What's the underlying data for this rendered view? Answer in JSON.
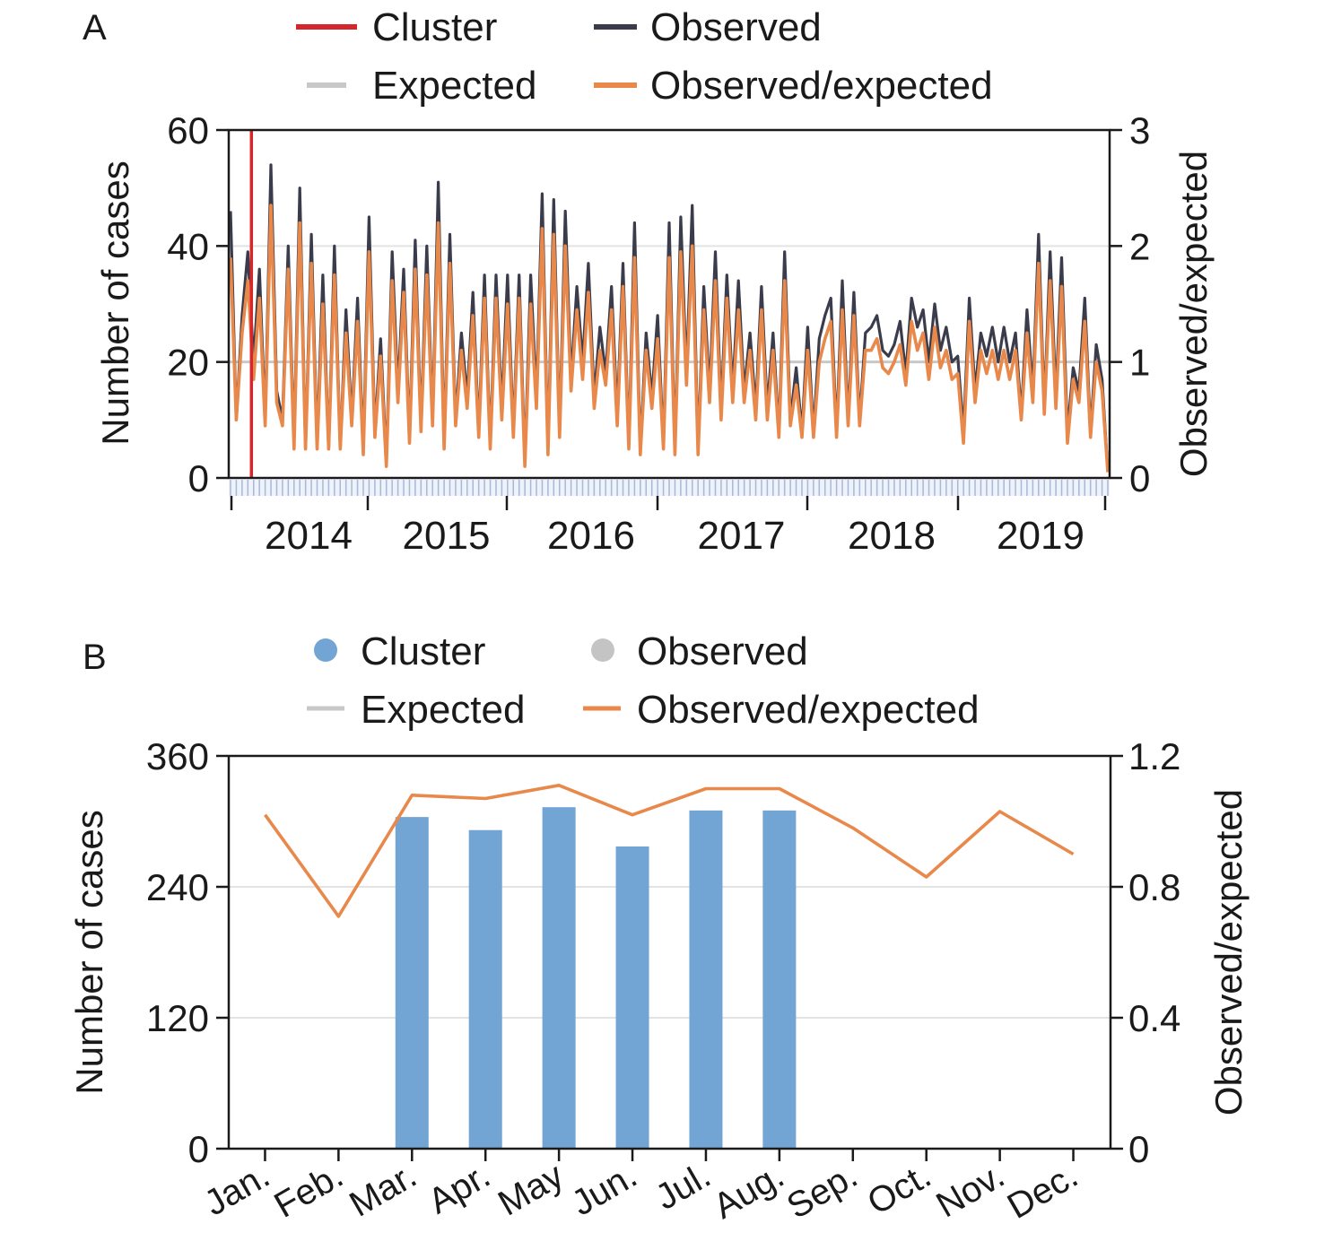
{
  "chart_data": [
    {
      "panel": "A",
      "type": "line",
      "legend": [
        "Cluster",
        "Observed",
        "Expected",
        "Observed/expected"
      ],
      "ylabel_left": "Number of cases",
      "ylabel_right": "Observed/expected",
      "ylim_left": [
        0,
        60
      ],
      "ylim_right": [
        0,
        3
      ],
      "yticks_left": [
        "0",
        "20",
        "40",
        "60"
      ],
      "yticks_right": [
        "0",
        "1",
        "2",
        "3"
      ],
      "x_year_labels": [
        "2014",
        "2015",
        "2016",
        "2017",
        "2018",
        "2019"
      ],
      "x_start": "2013-11",
      "cluster_marker_index": 3,
      "expected_value": 20,
      "series": [
        {
          "name": "Observed",
          "unit": "cases",
          "values": [
            46,
            10,
            28,
            39,
            20,
            36,
            10,
            54,
            15,
            10,
            40,
            6,
            50,
            5,
            42,
            6,
            35,
            5,
            40,
            5,
            29,
            10,
            31,
            5,
            45,
            8,
            24,
            3,
            39,
            15,
            36,
            7,
            41,
            9,
            40,
            10,
            51,
            6,
            42,
            10,
            25,
            14,
            32,
            8,
            35,
            6,
            35,
            12,
            35,
            8,
            35,
            3,
            35,
            14,
            49,
            5,
            48,
            8,
            46,
            17,
            33,
            20,
            37,
            14,
            26,
            18,
            33,
            11,
            37,
            6,
            44,
            5,
            25,
            14,
            28,
            6,
            44,
            5,
            45,
            18,
            47,
            5,
            33,
            15,
            39,
            12,
            35,
            15,
            34,
            15,
            25,
            12,
            33,
            12,
            25,
            8,
            39,
            10,
            19,
            8,
            26,
            8,
            24,
            28,
            31,
            8,
            34,
            10,
            32,
            10,
            25,
            26,
            28,
            22,
            21,
            23,
            27,
            18,
            31,
            26,
            29,
            20,
            30,
            22,
            26,
            20,
            21,
            8,
            31,
            15,
            25,
            21,
            26,
            20,
            26,
            20,
            25,
            11,
            29,
            15,
            42,
            12,
            39,
            14,
            38,
            8,
            19,
            15,
            31,
            8,
            23,
            17,
            1
          ]
        },
        {
          "name": "Observed/expected",
          "unit": "ratio",
          "values": [
            1.9,
            0.5,
            1.25,
            1.7,
            0.85,
            1.55,
            0.45,
            2.35,
            0.65,
            0.45,
            1.8,
            0.25,
            2.2,
            0.25,
            1.85,
            0.25,
            1.5,
            0.25,
            1.75,
            0.25,
            1.25,
            0.45,
            1.35,
            0.2,
            1.95,
            0.35,
            1.05,
            0.1,
            1.7,
            0.65,
            1.6,
            0.3,
            1.8,
            0.4,
            1.75,
            0.45,
            2.2,
            0.25,
            1.85,
            0.45,
            1.1,
            0.6,
            1.4,
            0.35,
            1.55,
            0.25,
            1.55,
            0.5,
            1.5,
            0.35,
            1.55,
            0.1,
            1.5,
            0.6,
            2.15,
            0.2,
            2.1,
            0.35,
            2.0,
            0.75,
            1.45,
            0.85,
            1.6,
            0.6,
            1.1,
            0.8,
            1.45,
            0.45,
            1.65,
            0.25,
            1.9,
            0.2,
            1.1,
            0.6,
            1.2,
            0.25,
            1.9,
            0.2,
            1.95,
            0.8,
            2.0,
            0.2,
            1.45,
            0.65,
            1.7,
            0.5,
            1.55,
            0.65,
            1.45,
            0.65,
            1.1,
            0.5,
            1.45,
            0.5,
            1.1,
            0.35,
            1.7,
            0.45,
            0.8,
            0.35,
            1.1,
            0.35,
            1.0,
            1.2,
            1.35,
            0.35,
            1.45,
            0.45,
            1.4,
            0.45,
            1.1,
            1.1,
            1.2,
            0.95,
            0.9,
            1.0,
            1.15,
            0.8,
            1.35,
            1.1,
            1.25,
            0.85,
            1.3,
            0.95,
            1.1,
            0.85,
            0.9,
            0.3,
            1.35,
            0.65,
            1.1,
            0.9,
            1.1,
            0.85,
            1.1,
            0.85,
            1.1,
            0.5,
            1.25,
            0.65,
            1.85,
            0.55,
            1.7,
            0.6,
            1.65,
            0.3,
            0.85,
            0.65,
            1.35,
            0.35,
            1.0,
            0.75,
            0.05
          ]
        }
      ]
    },
    {
      "panel": "B",
      "type": "bar",
      "legend": [
        "Cluster",
        "Observed",
        "Expected",
        "Observed/expected"
      ],
      "ylabel_left": "Number of cases",
      "ylabel_right": "Observed/expected",
      "ylim_left": [
        0,
        360
      ],
      "ylim_right": [
        0,
        1.2
      ],
      "yticks_left": [
        "0",
        "120",
        "240",
        "360"
      ],
      "yticks_right": [
        "0",
        "0.4",
        "0.8",
        "1.2"
      ],
      "categories": [
        "Jan.",
        "Feb.",
        "Mar.",
        "Apr.",
        "May",
        "Jun.",
        "Jul.",
        "Aug.",
        "Sep.",
        "Oct.",
        "Nov.",
        "Dec."
      ],
      "series": [
        {
          "name": "Cluster",
          "unit": "cases",
          "values": [
            null,
            null,
            304,
            292,
            313,
            277,
            310,
            310,
            null,
            null,
            null,
            null
          ]
        },
        {
          "name": "Observed/expected",
          "unit": "ratio",
          "values": [
            1.02,
            0.71,
            1.08,
            1.07,
            1.11,
            1.02,
            1.1,
            1.1,
            0.98,
            0.83,
            1.03,
            0.9
          ]
        }
      ]
    }
  ],
  "colors": {
    "cluster_line": "#d7262b",
    "observed_line": "#3a3c4c",
    "expected_line": "#c8c8c8",
    "ratio_line": "#e8884a",
    "cluster_bar": "#72a4d4",
    "observed_marker": "#c4c4c4",
    "axis": "#1a1a1a",
    "grid": "#e3e3e3",
    "month_ticks": "#a8b8d8"
  }
}
